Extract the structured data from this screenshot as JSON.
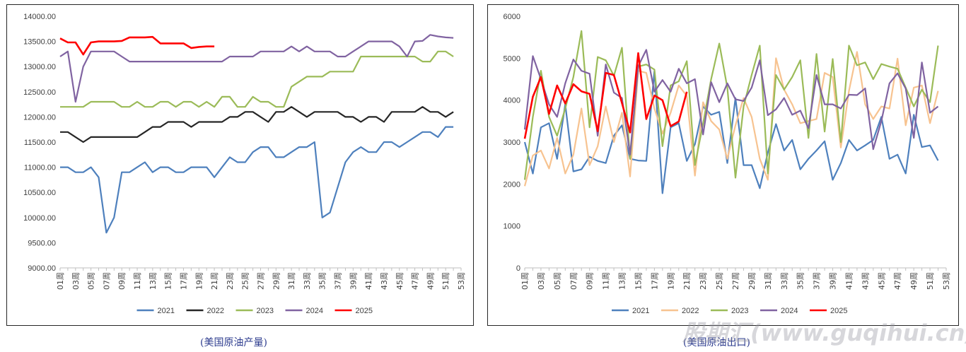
{
  "captions": {
    "left": "(美国原油产量)",
    "right": "(美国原油出口)"
  },
  "watermark": "股期汇(www.guqihui.cn)",
  "weeks_labels": [
    "01周",
    "03周",
    "05周",
    "07周",
    "09周",
    "11周",
    "13周",
    "15周",
    "17周",
    "19周",
    "21周",
    "23周",
    "25周",
    "27周",
    "29周",
    "31周",
    "33周",
    "35周",
    "37周",
    "39周",
    "41周",
    "43周",
    "45周",
    "47周",
    "49周",
    "51周",
    "53周"
  ],
  "chart_data": [
    {
      "type": "line",
      "title": "",
      "xlabel": "",
      "ylabel": "",
      "x_range": [
        1,
        53
      ],
      "ylim": [
        9000,
        14000
      ],
      "yticks": [
        9000,
        9500,
        10000,
        10500,
        11000,
        11500,
        12000,
        12500,
        13000,
        13500,
        14000
      ],
      "ytick_labels": [
        "9000.00",
        "9500.00",
        "10000.00",
        "10500.00",
        "11000.00",
        "11500.00",
        "12000.00",
        "12500.00",
        "13000.00",
        "13500.00",
        "14000.00"
      ],
      "grid": false,
      "legend_position": "bottom",
      "series": [
        {
          "name": "2021",
          "color": "#4e80bd",
          "values": [
            11000,
            11000,
            10900,
            10900,
            11000,
            10800,
            9700,
            10000,
            10900,
            10900,
            11000,
            11100,
            10900,
            11000,
            11000,
            10900,
            10900,
            11000,
            11000,
            11000,
            10800,
            11000,
            11200,
            11100,
            11100,
            11300,
            11400,
            11400,
            11200,
            11200,
            11300,
            11400,
            11400,
            11500,
            10000,
            10100,
            10600,
            11100,
            11300,
            11400,
            11300,
            11300,
            11500,
            11500,
            11400,
            11500,
            11600,
            11700,
            11700,
            11600,
            11800,
            11800
          ]
        },
        {
          "name": "2022",
          "color": "#262626",
          "values": [
            11700,
            11700,
            11600,
            11500,
            11600,
            11600,
            11600,
            11600,
            11600,
            11600,
            11600,
            11700,
            11800,
            11800,
            11900,
            11900,
            11900,
            11800,
            11900,
            11900,
            11900,
            11900,
            12000,
            12000,
            12100,
            12100,
            12000,
            11900,
            12100,
            12100,
            12200,
            12100,
            12000,
            12100,
            12100,
            12100,
            12100,
            12000,
            12000,
            11900,
            12000,
            12000,
            11900,
            12100,
            12100,
            12100,
            12100,
            12200,
            12100,
            12100,
            12000,
            12100
          ]
        },
        {
          "name": "2023",
          "color": "#9bbb58",
          "values": [
            12200,
            12200,
            12200,
            12200,
            12300,
            12300,
            12300,
            12300,
            12200,
            12200,
            12300,
            12200,
            12200,
            12300,
            12300,
            12200,
            12300,
            12300,
            12200,
            12300,
            12200,
            12400,
            12400,
            12200,
            12200,
            12400,
            12300,
            12300,
            12200,
            12200,
            12600,
            12700,
            12800,
            12800,
            12800,
            12900,
            12900,
            12900,
            12900,
            13200,
            13200,
            13200,
            13200,
            13200,
            13200,
            13200,
            13200,
            13100,
            13100,
            13300,
            13300,
            13200
          ]
        },
        {
          "name": "2024",
          "color": "#8063a1",
          "values": [
            13200,
            13300,
            12300,
            13000,
            13300,
            13300,
            13300,
            13300,
            13200,
            13100,
            13100,
            13100,
            13100,
            13100,
            13100,
            13100,
            13100,
            13100,
            13100,
            13100,
            13100,
            13100,
            13200,
            13200,
            13200,
            13200,
            13300,
            13300,
            13300,
            13300,
            13400,
            13300,
            13400,
            13300,
            13300,
            13300,
            13200,
            13200,
            13300,
            13400,
            13500,
            13500,
            13500,
            13500,
            13400,
            13200,
            13500,
            13510,
            13630,
            13600,
            13580,
            13570
          ]
        },
        {
          "name": "2025",
          "color": "#ff0000",
          "values": [
            13560,
            13480,
            13480,
            13240,
            13480,
            13500,
            13500,
            13500,
            13510,
            13580,
            13580,
            13580,
            13590,
            13460,
            13460,
            13460,
            13460,
            13370,
            13390,
            13400,
            13400
          ]
        }
      ]
    },
    {
      "type": "line",
      "title": "",
      "xlabel": "",
      "ylabel": "",
      "x_range": [
        1,
        53
      ],
      "ylim": [
        0,
        6000
      ],
      "yticks": [
        0,
        1000,
        2000,
        3000,
        4000,
        5000,
        6000
      ],
      "ytick_labels": [
        "0",
        "1000",
        "2000",
        "3000",
        "4000",
        "5000",
        "6000"
      ],
      "grid": false,
      "legend_position": "bottom",
      "series": [
        {
          "name": "2021",
          "color": "#4e80bd",
          "values": [
            3000,
            2250,
            3350,
            3450,
            2600,
            3900,
            2300,
            2350,
            2650,
            2550,
            2500,
            3150,
            3400,
            2600,
            2560,
            2550,
            4700,
            1780,
            3350,
            3450,
            2550,
            2950,
            3850,
            3650,
            3720,
            2500,
            4050,
            2450,
            2450,
            1900,
            2750,
            3430,
            2800,
            3050,
            2350,
            2600,
            2800,
            3020,
            2100,
            2500,
            3050,
            2800,
            2920,
            3050,
            3600,
            2600,
            2700,
            2250,
            3650,
            2880,
            2920,
            2560
          ]
        },
        {
          "name": "2022",
          "color": "#f7c390",
          "values": [
            1950,
            2680,
            2800,
            2370,
            3100,
            2250,
            2700,
            3800,
            2450,
            2900,
            3850,
            3000,
            3700,
            2180,
            4700,
            4650,
            3800,
            3200,
            3700,
            4350,
            4100,
            2200,
            3950,
            3500,
            3300,
            2600,
            3400,
            4050,
            3600,
            2600,
            2100,
            5000,
            4250,
            3900,
            3450,
            3500,
            3550,
            4650,
            4550,
            2870,
            4220,
            5150,
            3900,
            3550,
            3850,
            3800,
            4990,
            3400,
            4300,
            4350,
            3450,
            4220
          ]
        },
        {
          "name": "2023",
          "color": "#9bbb58",
          "values": [
            2100,
            3600,
            4700,
            3600,
            3150,
            3800,
            4550,
            5650,
            3350,
            5030,
            4950,
            4580,
            5250,
            2600,
            4800,
            4850,
            4730,
            2900,
            4350,
            4450,
            4930,
            2450,
            3440,
            4500,
            5350,
            4300,
            2150,
            3850,
            4600,
            5300,
            2250,
            4600,
            4250,
            4550,
            4950,
            3100,
            5100,
            3250,
            4980,
            3000,
            5300,
            4830,
            4900,
            4500,
            4860,
            4800,
            4750,
            4300,
            3850,
            4250,
            3950,
            5300
          ]
        },
        {
          "name": "2024",
          "color": "#8063a1",
          "values": [
            3300,
            5050,
            4500,
            3900,
            3600,
            4400,
            4970,
            4700,
            4630,
            3150,
            4850,
            4180,
            4050,
            2700,
            4810,
            5200,
            4200,
            4480,
            4200,
            4750,
            4400,
            4500,
            3180,
            4430,
            3950,
            4400,
            4020,
            3980,
            4300,
            4950,
            3640,
            3780,
            4050,
            3650,
            3750,
            3330,
            4600,
            3900,
            3900,
            3800,
            4130,
            4120,
            4280,
            2830,
            3500,
            4400,
            4640,
            4280,
            3100,
            4900,
            3700,
            3850
          ]
        },
        {
          "name": "2025",
          "color": "#ff0000",
          "values": [
            3080,
            4080,
            4550,
            3670,
            4350,
            3920,
            4380,
            4210,
            4150,
            3260,
            4650,
            4600,
            3930,
            3230,
            5120,
            3550,
            4110,
            4000,
            3380,
            3490,
            4200
          ]
        }
      ]
    }
  ]
}
